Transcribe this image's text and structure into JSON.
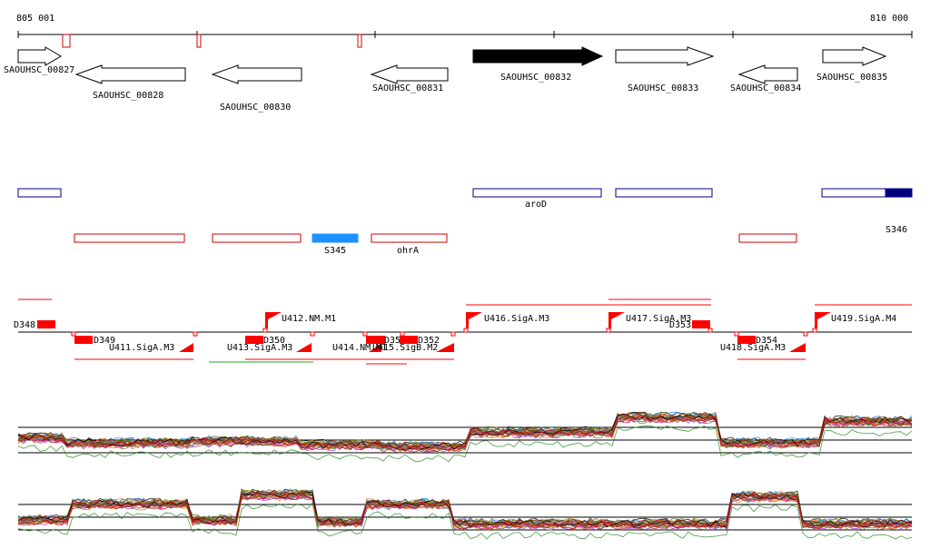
{
  "coords": {
    "start": "805 001",
    "end": "810 000"
  },
  "genes": [
    {
      "id": "SAOUHSC_00827",
      "strand": "+",
      "highlight": false
    },
    {
      "id": "SAOUHSC_00828",
      "strand": "-",
      "highlight": false
    },
    {
      "id": "SAOUHSC_00830",
      "strand": "-",
      "highlight": false
    },
    {
      "id": "SAOUHSC_00831",
      "strand": "-",
      "highlight": false
    },
    {
      "id": "SAOUHSC_00832",
      "strand": "+",
      "highlight": true
    },
    {
      "id": "SAOUHSC_00833",
      "strand": "+",
      "highlight": false
    },
    {
      "id": "SAOUHSC_00834",
      "strand": "-",
      "highlight": false
    },
    {
      "id": "SAOUHSC_00835",
      "strand": "+",
      "highlight": false
    }
  ],
  "annotations_plus": [
    {
      "label": "",
      "filled": false
    },
    {
      "label": "aroD",
      "filled": false
    },
    {
      "label": "",
      "filled": false
    },
    {
      "label": "S346",
      "filled": true
    }
  ],
  "annotations_minus": [
    {
      "label": "",
      "filled": false
    },
    {
      "label": "",
      "filled": false
    },
    {
      "label": "S345",
      "filled": true
    },
    {
      "label": "ohrA",
      "filled": false
    },
    {
      "label": "",
      "filled": false
    }
  ],
  "segments": [
    {
      "label": "D348"
    },
    {
      "label": "D349"
    },
    {
      "label": "U411.SigA.M3"
    },
    {
      "label": "U412.NM.M1"
    },
    {
      "label": "D350"
    },
    {
      "label": "U413.SigA.M3"
    },
    {
      "label": "U414.NM.M1"
    },
    {
      "label": "D351"
    },
    {
      "label": "U415.SigB.M2"
    },
    {
      "label": "D352"
    },
    {
      "label": "U416.SigA.M3"
    },
    {
      "label": "U417.SigA.M3"
    },
    {
      "label": "D353"
    },
    {
      "label": "D354"
    },
    {
      "label": "U418.SigA.M3"
    },
    {
      "label": "U419.SigA.M4"
    }
  ],
  "colors": {
    "gene_outline": "#000000",
    "gene_highlight": "#000000",
    "annot_plus": "#000080",
    "annot_minus": "#cc0000",
    "annot_fill_light": "#1e90ff",
    "segment": "#ff0000"
  }
}
